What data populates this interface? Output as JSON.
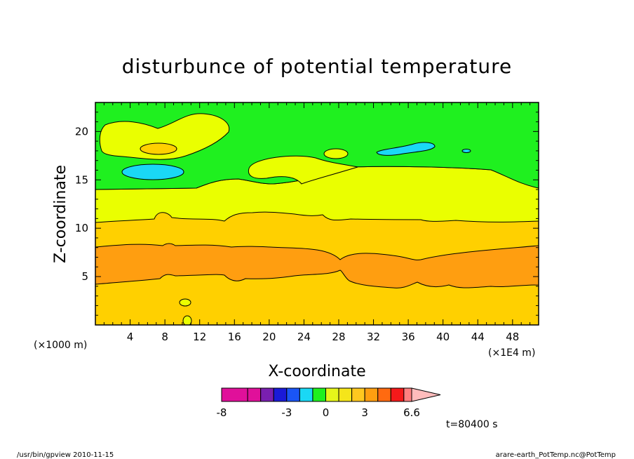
{
  "chart_data": {
    "type": "contour",
    "title": "disturbunce of potential temperature",
    "xlabel": "X-coordinate",
    "ylabel": "Z-coordinate",
    "x_unit_left": "(×1000 m)",
    "x_unit_right": "(×1E4 m)",
    "xlim": [
      0,
      51
    ],
    "ylim": [
      0,
      23
    ],
    "x_ticks": [
      "4",
      "8",
      "12",
      "16",
      "20",
      "24",
      "28",
      "32",
      "36",
      "40",
      "44",
      "48"
    ],
    "x_tick_values": [
      4,
      8,
      12,
      16,
      20,
      24,
      28,
      32,
      36,
      40,
      44,
      48
    ],
    "y_ticks": [
      "5",
      "10",
      "15",
      "20"
    ],
    "y_tick_values": [
      5,
      10,
      15,
      20
    ],
    "time_label": "t=80400 s",
    "colorbar": {
      "labels": [
        "-8",
        "-3",
        "0",
        "3",
        "6.6"
      ],
      "label_levels": [
        -8,
        -3,
        0,
        3,
        6.6
      ],
      "levels": [
        -8,
        -6,
        -5,
        -4,
        -3,
        -2,
        -1,
        0,
        1,
        2,
        3,
        4,
        5,
        6,
        6.6
      ],
      "colors": [
        "#e0109a",
        "#e0109a",
        "#7a1fb0",
        "#1a1ad8",
        "#1a55f5",
        "#1ad8f5",
        "#1ff01f",
        "#e5f51a",
        "#f5e51a",
        "#ffc81f",
        "#ff9e10",
        "#ff6a10",
        "#f51a1a",
        "#ff8080",
        "#ffbcbc"
      ],
      "over_color": "#ffbcbc"
    },
    "regions": [
      {
        "name": "green-band",
        "value_range": [
          -1,
          0
        ],
        "color": "#1ff01f"
      },
      {
        "name": "yellow-band",
        "value_range": [
          0,
          1
        ],
        "color": "#eaff00"
      },
      {
        "name": "gold-band",
        "value_range": [
          1,
          2
        ],
        "color": "#ffd000"
      },
      {
        "name": "orange-band",
        "value_range": [
          2,
          3
        ],
        "color": "#ff9e10"
      },
      {
        "name": "cyan-pockets",
        "value_range": [
          -2,
          -1
        ],
        "color": "#1ad8f5"
      }
    ]
  },
  "footer": {
    "left": "/usr/bin/gpview   2010-11-15",
    "right": "arare-earth_PotTemp.nc@PotTemp"
  }
}
